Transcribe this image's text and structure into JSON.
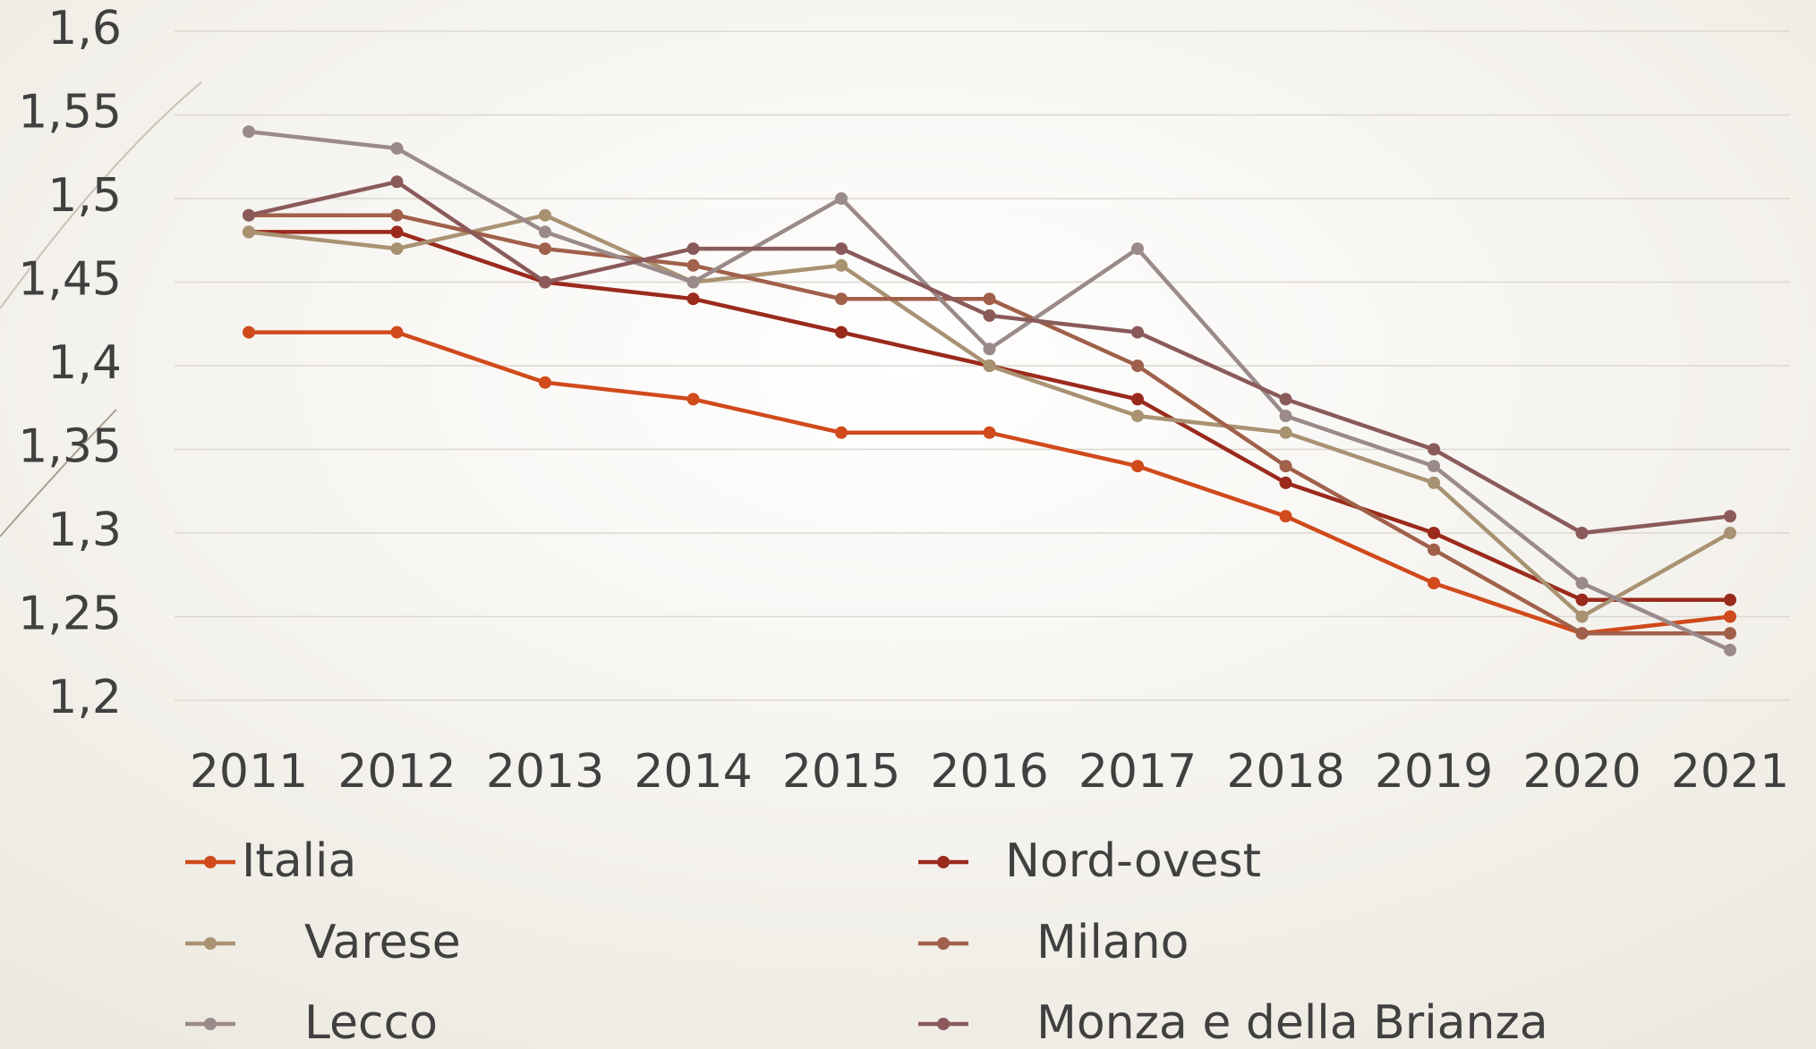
{
  "chart_data": {
    "type": "line",
    "categories": [
      "2011",
      "2012",
      "2013",
      "2014",
      "2015",
      "2016",
      "2017",
      "2018",
      "2019",
      "2020",
      "2021"
    ],
    "series": [
      {
        "name": "Italia",
        "color": "#d04a1c",
        "values": [
          1.42,
          1.42,
          1.39,
          1.38,
          1.36,
          1.36,
          1.34,
          1.31,
          1.27,
          1.24,
          1.25
        ]
      },
      {
        "name": "Nord-ovest",
        "color": "#9a2a1c",
        "values": [
          1.48,
          1.48,
          1.45,
          1.44,
          1.42,
          1.4,
          1.38,
          1.33,
          1.3,
          1.26,
          1.26
        ]
      },
      {
        "name": "Varese",
        "color": "#a89272",
        "values": [
          1.48,
          1.47,
          1.49,
          1.45,
          1.46,
          1.4,
          1.37,
          1.36,
          1.33,
          1.25,
          1.3
        ]
      },
      {
        "name": "Milano",
        "color": "#a0604a",
        "values": [
          1.49,
          1.49,
          1.47,
          1.46,
          1.44,
          1.44,
          1.4,
          1.34,
          1.29,
          1.24,
          1.24
        ]
      },
      {
        "name": "Lecco",
        "color": "#9a8a8a",
        "values": [
          1.54,
          1.53,
          1.48,
          1.45,
          1.5,
          1.41,
          1.47,
          1.37,
          1.34,
          1.27,
          1.23
        ]
      },
      {
        "name": "Monza e della Brianza",
        "color": "#8a5a5a",
        "values": [
          1.49,
          1.51,
          1.45,
          1.47,
          1.47,
          1.43,
          1.42,
          1.38,
          1.35,
          1.3,
          1.31
        ]
      }
    ],
    "ylim": [
      1.2,
      1.6
    ],
    "yticks": [
      {
        "value": 1.2,
        "label": "1,2"
      },
      {
        "value": 1.25,
        "label": "1,25"
      },
      {
        "value": 1.3,
        "label": "1,3"
      },
      {
        "value": 1.35,
        "label": "1,35"
      },
      {
        "value": 1.4,
        "label": "1,4"
      },
      {
        "value": 1.45,
        "label": "1,45"
      },
      {
        "value": 1.5,
        "label": "1,5"
      },
      {
        "value": 1.55,
        "label": "1,55"
      },
      {
        "value": 1.6,
        "label": "1,6"
      }
    ],
    "grid": true,
    "legend": "bottom"
  }
}
